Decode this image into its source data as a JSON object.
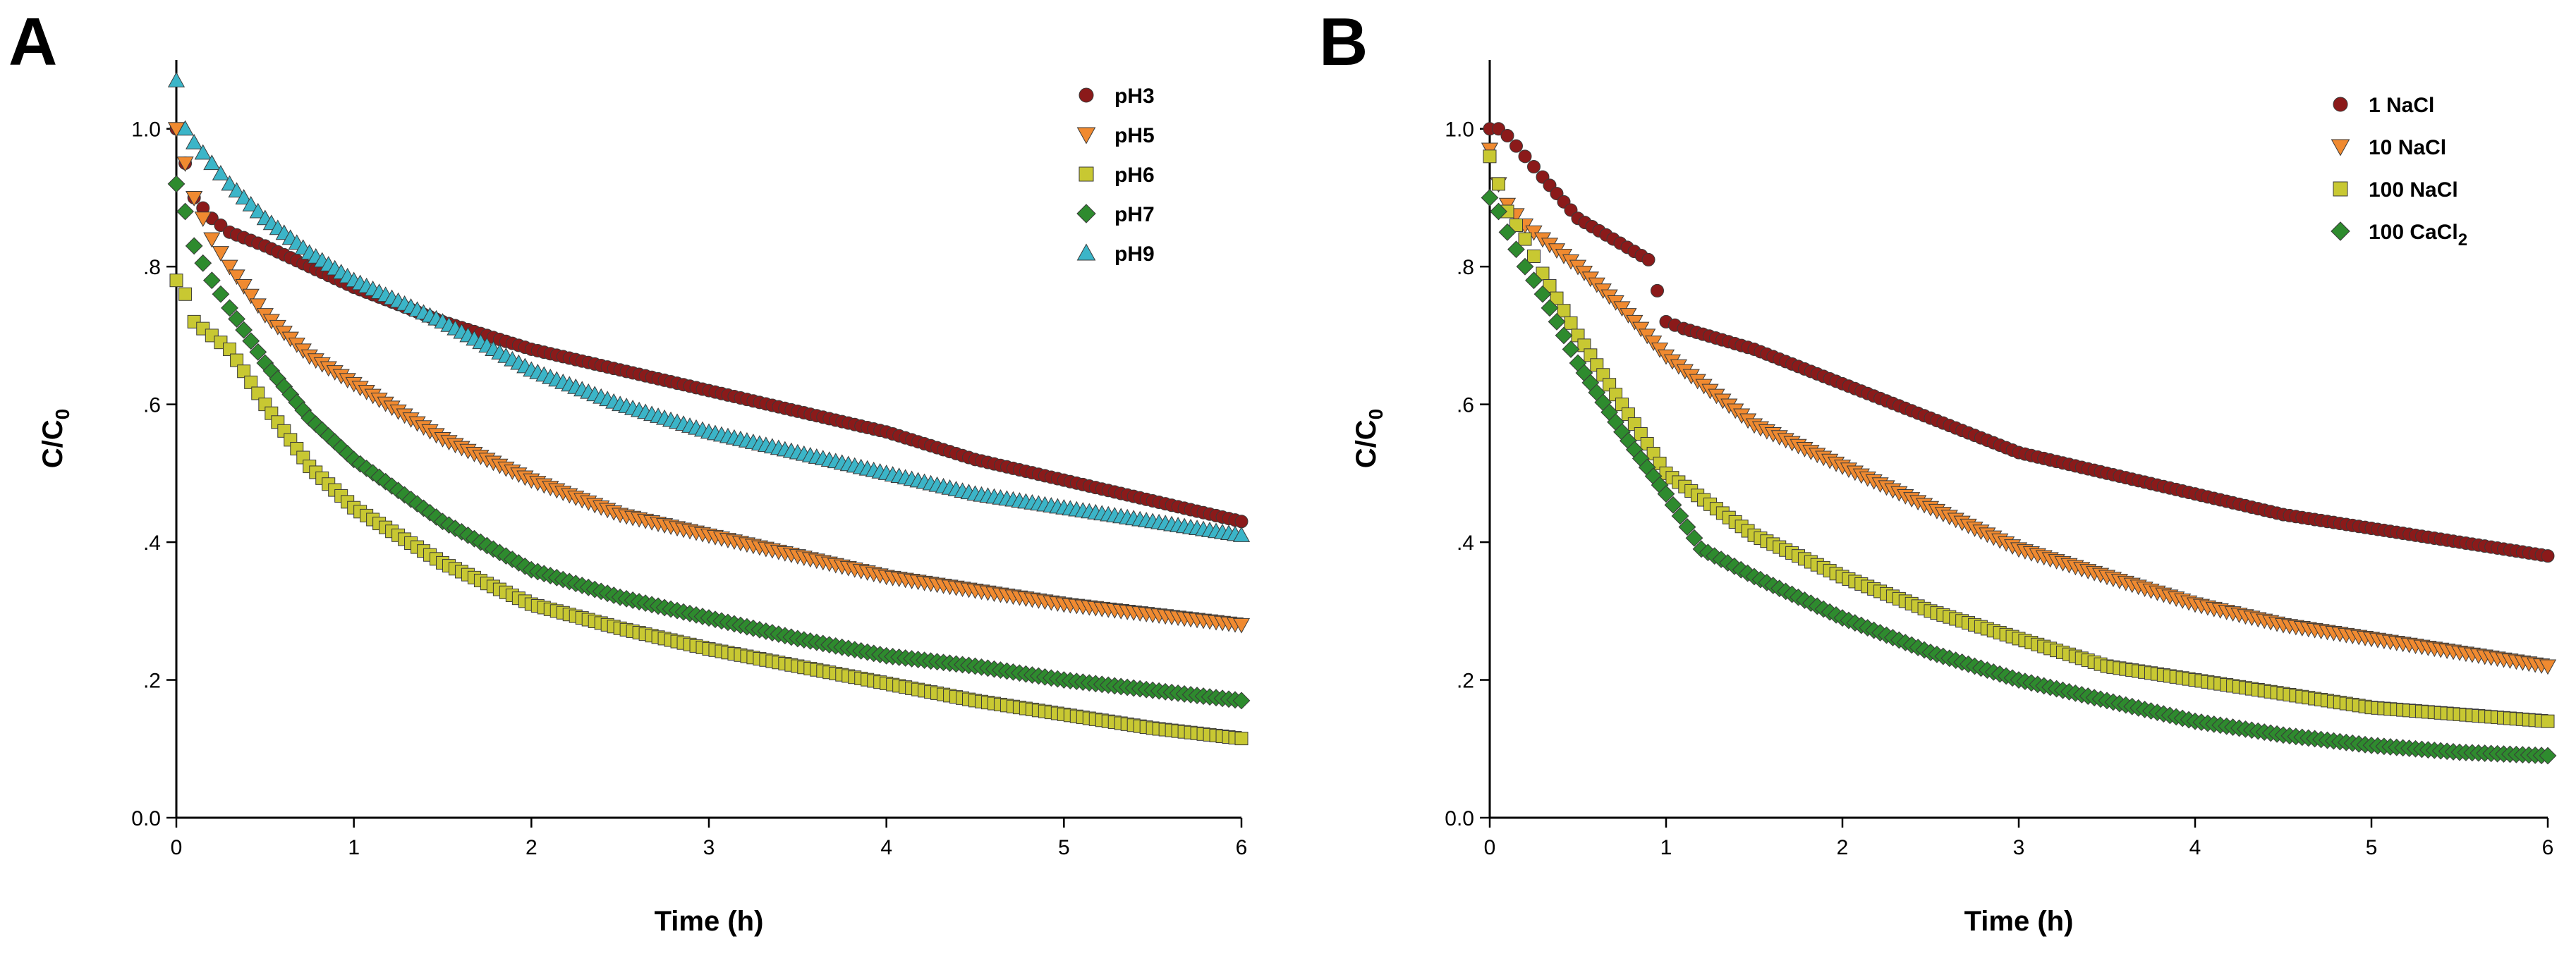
{
  "chart_data": [
    {
      "panel": "A",
      "type": "scatter",
      "xlabel": "Time (h)",
      "ylabel": {
        "main": "C/C",
        "sub": "0"
      },
      "xlim": [
        0,
        6
      ],
      "ylim": [
        0,
        1.1
      ],
      "xticks": [
        0,
        1,
        2,
        3,
        4,
        5,
        6
      ],
      "xtick_labels": [
        "0",
        "1",
        "2",
        "3",
        "4",
        "5",
        "6"
      ],
      "yticks": [
        0,
        0.2,
        0.4,
        0.6,
        0.8,
        1.0
      ],
      "ytick_labels": [
        "0.0",
        ".2",
        ".4",
        ".6",
        ".8",
        "1.0"
      ],
      "legend_position": "top-right",
      "series": [
        {
          "name": "pH3",
          "marker": "circle",
          "color": "#8b1a1a",
          "x": [
            0,
            0.05,
            0.1,
            0.2,
            0.3,
            0.5,
            0.75,
            1,
            1.5,
            2,
            2.5,
            3,
            3.5,
            4,
            4.5,
            5,
            5.5,
            6
          ],
          "y": [
            1.0,
            0.95,
            0.9,
            0.87,
            0.85,
            0.83,
            0.8,
            0.77,
            0.72,
            0.68,
            0.65,
            0.62,
            0.59,
            0.56,
            0.52,
            0.49,
            0.46,
            0.43
          ]
        },
        {
          "name": "pH5",
          "marker": "triangle-down",
          "color": "#f08a30",
          "x": [
            0,
            0.05,
            0.1,
            0.2,
            0.3,
            0.5,
            0.75,
            1,
            1.5,
            2,
            2.5,
            3,
            3.5,
            4,
            4.5,
            5,
            5.5,
            6
          ],
          "y": [
            1.0,
            0.95,
            0.9,
            0.84,
            0.8,
            0.73,
            0.67,
            0.63,
            0.55,
            0.49,
            0.44,
            0.41,
            0.38,
            0.35,
            0.33,
            0.31,
            0.295,
            0.28
          ]
        },
        {
          "name": "pH6",
          "marker": "square",
          "color": "#c8c832",
          "x": [
            0,
            0.05,
            0.1,
            0.2,
            0.3,
            0.5,
            0.75,
            1,
            1.5,
            2,
            2.5,
            3,
            3.5,
            4,
            4.5,
            5,
            5.5,
            6
          ],
          "y": [
            0.78,
            0.76,
            0.72,
            0.7,
            0.68,
            0.6,
            0.51,
            0.45,
            0.37,
            0.31,
            0.275,
            0.245,
            0.22,
            0.195,
            0.17,
            0.15,
            0.13,
            0.115
          ]
        },
        {
          "name": "pH7",
          "marker": "diamond",
          "color": "#2e8b2e",
          "x": [
            0,
            0.05,
            0.1,
            0.2,
            0.3,
            0.5,
            0.75,
            1,
            1.5,
            2,
            2.5,
            3,
            3.5,
            4,
            4.5,
            5,
            5.5,
            6
          ],
          "y": [
            0.92,
            0.88,
            0.83,
            0.78,
            0.74,
            0.66,
            0.58,
            0.52,
            0.43,
            0.36,
            0.32,
            0.29,
            0.26,
            0.235,
            0.22,
            0.2,
            0.185,
            0.17
          ]
        },
        {
          "name": "pH9",
          "marker": "triangle-up",
          "color": "#3bb5c8",
          "x": [
            0,
            0.05,
            0.1,
            0.2,
            0.3,
            0.5,
            0.75,
            1,
            1.5,
            2,
            2.5,
            3,
            3.5,
            4,
            4.5,
            5,
            5.5,
            6
          ],
          "y": [
            1.07,
            1.0,
            0.98,
            0.95,
            0.92,
            0.87,
            0.82,
            0.78,
            0.72,
            0.65,
            0.6,
            0.56,
            0.53,
            0.5,
            0.47,
            0.45,
            0.43,
            0.41
          ]
        }
      ]
    },
    {
      "panel": "B",
      "type": "scatter",
      "xlabel": "Time (h)",
      "ylabel": {
        "main": "C/C",
        "sub": "0"
      },
      "xlim": [
        0,
        6
      ],
      "ylim": [
        0,
        1.1
      ],
      "xticks": [
        0,
        1,
        2,
        3,
        4,
        5,
        6
      ],
      "xtick_labels": [
        "0",
        "1",
        "2",
        "3",
        "4",
        "5",
        "6"
      ],
      "yticks": [
        0,
        0.2,
        0.4,
        0.6,
        0.8,
        1.0
      ],
      "ytick_labels": [
        "0.0",
        ".2",
        ".4",
        ".6",
        ".8",
        "1.0"
      ],
      "legend_position": "top-right",
      "series": [
        {
          "name": "1 NaCl",
          "marker": "circle",
          "color": "#8b1a1a",
          "x": [
            0,
            0.05,
            0.1,
            0.2,
            0.3,
            0.5,
            0.7,
            0.9,
            1.0,
            1.1,
            1.5,
            2,
            2.5,
            3,
            3.5,
            4,
            4.5,
            5,
            5.5,
            6
          ],
          "y": [
            1.0,
            1.0,
            0.99,
            0.96,
            0.93,
            0.87,
            0.84,
            0.81,
            0.72,
            0.71,
            0.68,
            0.63,
            0.58,
            0.53,
            0.5,
            0.47,
            0.44,
            0.42,
            0.4,
            0.38
          ]
        },
        {
          "name": "10 NaCl",
          "marker": "triangle-down",
          "color": "#f08a30",
          "x": [
            0,
            0.05,
            0.1,
            0.2,
            0.3,
            0.5,
            0.75,
            1,
            1.5,
            2,
            2.5,
            3,
            3.5,
            4,
            4.5,
            5,
            5.5,
            6
          ],
          "y": [
            0.97,
            0.92,
            0.89,
            0.86,
            0.84,
            0.8,
            0.74,
            0.67,
            0.57,
            0.51,
            0.45,
            0.39,
            0.35,
            0.31,
            0.28,
            0.26,
            0.24,
            0.22
          ]
        },
        {
          "name": "100 NaCl",
          "marker": "square",
          "color": "#c8c832",
          "x": [
            0,
            0.05,
            0.1,
            0.2,
            0.3,
            0.5,
            0.75,
            1,
            1.5,
            2,
            2.5,
            3,
            3.5,
            4,
            4.5,
            5,
            5.5,
            6
          ],
          "y": [
            0.96,
            0.92,
            0.88,
            0.84,
            0.79,
            0.7,
            0.6,
            0.5,
            0.41,
            0.35,
            0.3,
            0.26,
            0.22,
            0.2,
            0.18,
            0.16,
            0.15,
            0.14
          ]
        },
        {
          "name": "100 CaCl",
          "name_sub": "2",
          "marker": "diamond",
          "color": "#2e8b2e",
          "x": [
            0,
            0.05,
            0.1,
            0.2,
            0.3,
            0.5,
            0.75,
            1,
            1.2,
            1.5,
            2,
            2.5,
            3,
            3.5,
            4,
            4.5,
            5,
            5.5,
            6
          ],
          "y": [
            0.9,
            0.88,
            0.85,
            0.8,
            0.76,
            0.66,
            0.56,
            0.47,
            0.39,
            0.35,
            0.29,
            0.24,
            0.2,
            0.17,
            0.14,
            0.12,
            0.105,
            0.095,
            0.09
          ]
        }
      ]
    }
  ]
}
